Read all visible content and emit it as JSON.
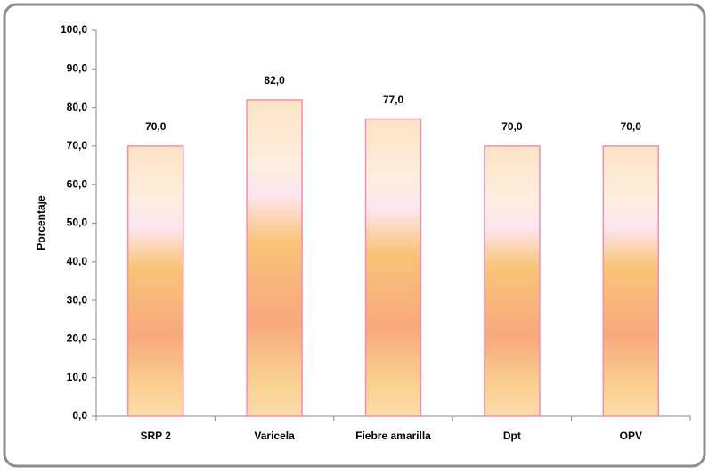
{
  "chart_data": {
    "type": "bar",
    "y_label": "Porcentaje",
    "categories": [
      "SRP 2",
      "Varicela",
      "Fiebre amarilla",
      "Dpt",
      "OPV"
    ],
    "values": [
      70,
      82,
      77,
      70,
      70
    ],
    "value_labels": [
      "70,0",
      "82,0",
      "77,0",
      "70,0",
      "70,0"
    ],
    "color": "#ef8fb3",
    "ylim": [
      0,
      100
    ],
    "yticks": [
      {
        "value": 0,
        "label": "0,0"
      },
      {
        "value": 10,
        "label": "10,0"
      },
      {
        "value": 20,
        "label": "20,0"
      },
      {
        "value": 30,
        "label": "30,0"
      },
      {
        "value": 40,
        "label": "40,0"
      },
      {
        "value": 50,
        "label": "50,0"
      },
      {
        "value": 60,
        "label": "60,0"
      },
      {
        "value": 70,
        "label": "70,0"
      },
      {
        "value": 80,
        "label": "80,0"
      },
      {
        "value": 90,
        "label": "90,0"
      },
      {
        "value": 100,
        "label": "100,0"
      }
    ],
    "grid": false
  }
}
